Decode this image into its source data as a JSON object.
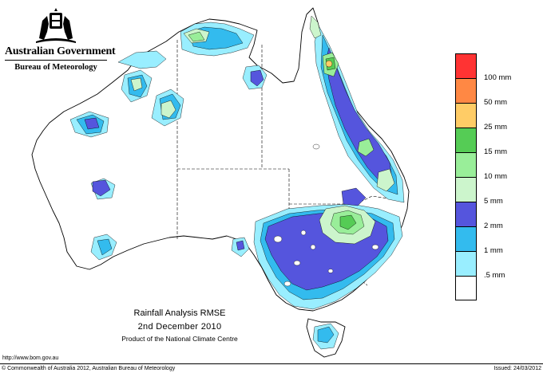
{
  "header": {
    "government": "Australian Government",
    "bureau": "Bureau of Meteorology"
  },
  "legend": {
    "items": [
      {
        "label": "100 mm",
        "color": "#ff3333"
      },
      {
        "label": "50 mm",
        "color": "#ff8844"
      },
      {
        "label": "25 mm",
        "color": "#ffcc66"
      },
      {
        "label": "15 mm",
        "color": "#55cc55"
      },
      {
        "label": "10 mm",
        "color": "#99ee99"
      },
      {
        "label": "5 mm",
        "color": "#ccf5cc"
      },
      {
        "label": "2 mm",
        "color": "#5555dd"
      },
      {
        "label": "1 mm",
        "color": "#33bbee"
      },
      {
        "label": ".5 mm",
        "color": "#99eeff"
      },
      {
        "label": "",
        "color": "#ffffff"
      }
    ]
  },
  "title": {
    "line1": "Rainfall Analysis RMSE",
    "line2": "2nd  December  2010",
    "line3": "Product of the National Climate Centre"
  },
  "footer": {
    "url": "http://www.bom.gov.au",
    "copyright": "© Commonwealth of Australia 2012, Australian Bureau of Meteorology",
    "issued": "Issued: 24/03/2012"
  }
}
